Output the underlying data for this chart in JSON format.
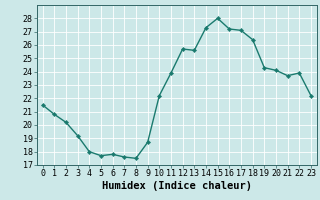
{
  "x": [
    0,
    1,
    2,
    3,
    4,
    5,
    6,
    7,
    8,
    9,
    10,
    11,
    12,
    13,
    14,
    15,
    16,
    17,
    18,
    19,
    20,
    21,
    22,
    23
  ],
  "y": [
    21.5,
    20.8,
    20.2,
    19.2,
    18.0,
    17.7,
    17.8,
    17.6,
    17.5,
    18.7,
    22.2,
    23.9,
    25.7,
    25.6,
    27.3,
    28.0,
    27.2,
    27.1,
    26.4,
    24.3,
    24.1,
    23.7,
    23.9,
    22.2
  ],
  "line_color": "#1a7a6e",
  "marker": "D",
  "marker_size": 2.2,
  "bg_color": "#cce8e8",
  "grid_color": "#ffffff",
  "xlabel": "Humidex (Indice chaleur)",
  "ylabel": "",
  "ylim": [
    17,
    29
  ],
  "xlim": [
    -0.5,
    23.5
  ],
  "yticks": [
    17,
    18,
    19,
    20,
    21,
    22,
    23,
    24,
    25,
    26,
    27,
    28
  ],
  "xticks": [
    0,
    1,
    2,
    3,
    4,
    5,
    6,
    7,
    8,
    9,
    10,
    11,
    12,
    13,
    14,
    15,
    16,
    17,
    18,
    19,
    20,
    21,
    22,
    23
  ],
  "tick_fontsize": 6,
  "xlabel_fontsize": 7.5,
  "line_width": 1.0
}
